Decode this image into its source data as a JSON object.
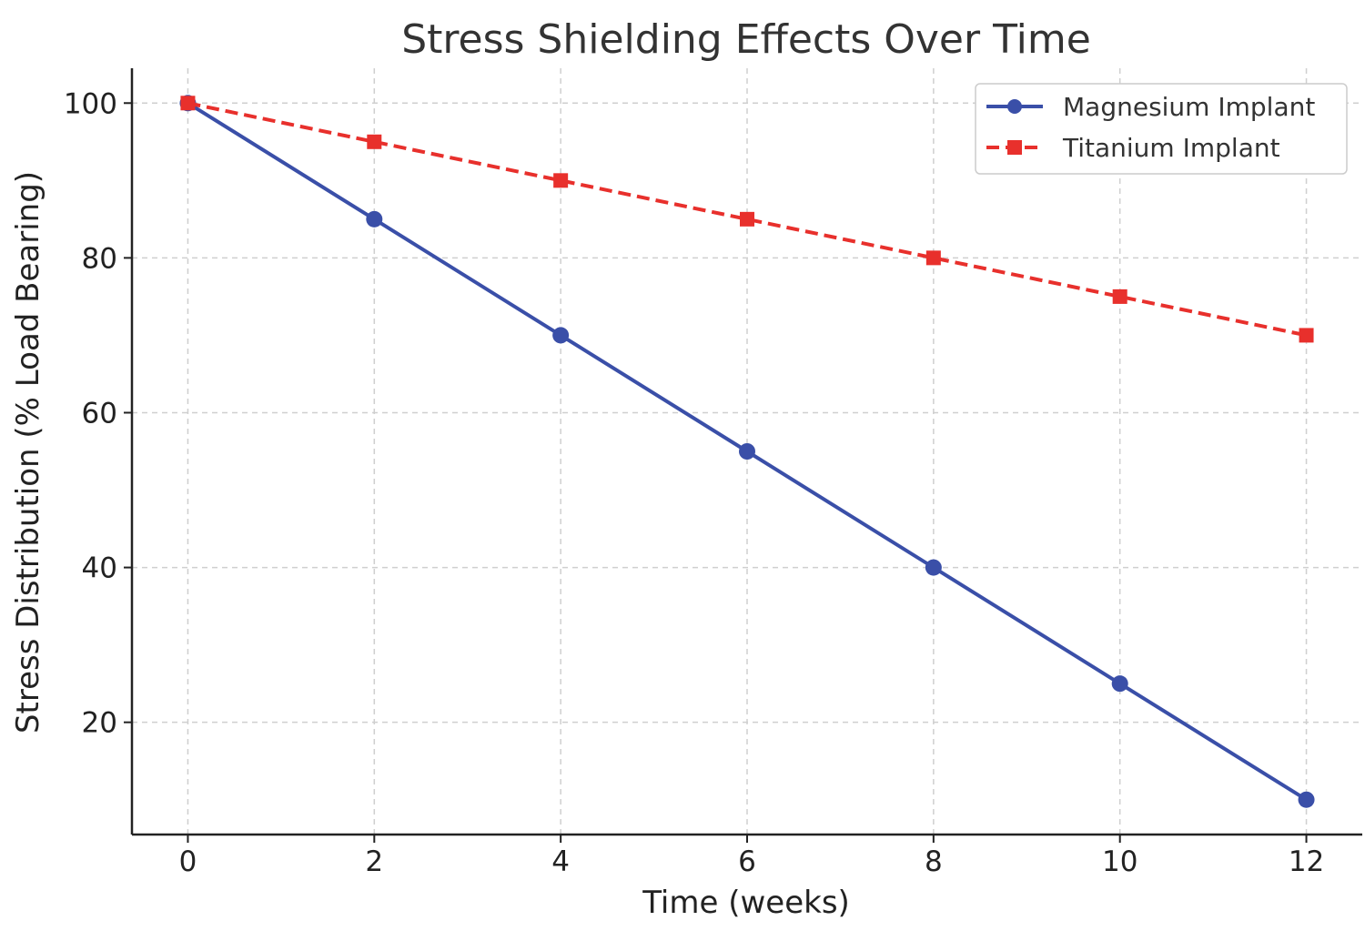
{
  "chart_data": {
    "type": "line",
    "title": "Stress Shielding Effects Over Time",
    "xlabel": "Time (weeks)",
    "ylabel": "Stress Distribution (% Load Bearing)",
    "x": [
      0,
      2,
      4,
      6,
      8,
      10,
      12
    ],
    "xticks": [
      "0",
      "2",
      "4",
      "6",
      "8",
      "10",
      "12"
    ],
    "yticks": [
      "20",
      "40",
      "60",
      "80",
      "100"
    ],
    "xlim": [
      -0.6,
      12.6
    ],
    "ylim": [
      5.5,
      104.5
    ],
    "grid": true,
    "legend_position": "top-right",
    "series": [
      {
        "name": "Magnesium Implant",
        "values": [
          100,
          85,
          70,
          55,
          40,
          25,
          10
        ],
        "color": "#3a4fa8",
        "line_style": "solid",
        "marker": "circle"
      },
      {
        "name": "Titanium Implant",
        "values": [
          100,
          95,
          90,
          85,
          80,
          75,
          70
        ],
        "color": "#e8302c",
        "line_style": "dashed",
        "marker": "square"
      }
    ]
  }
}
